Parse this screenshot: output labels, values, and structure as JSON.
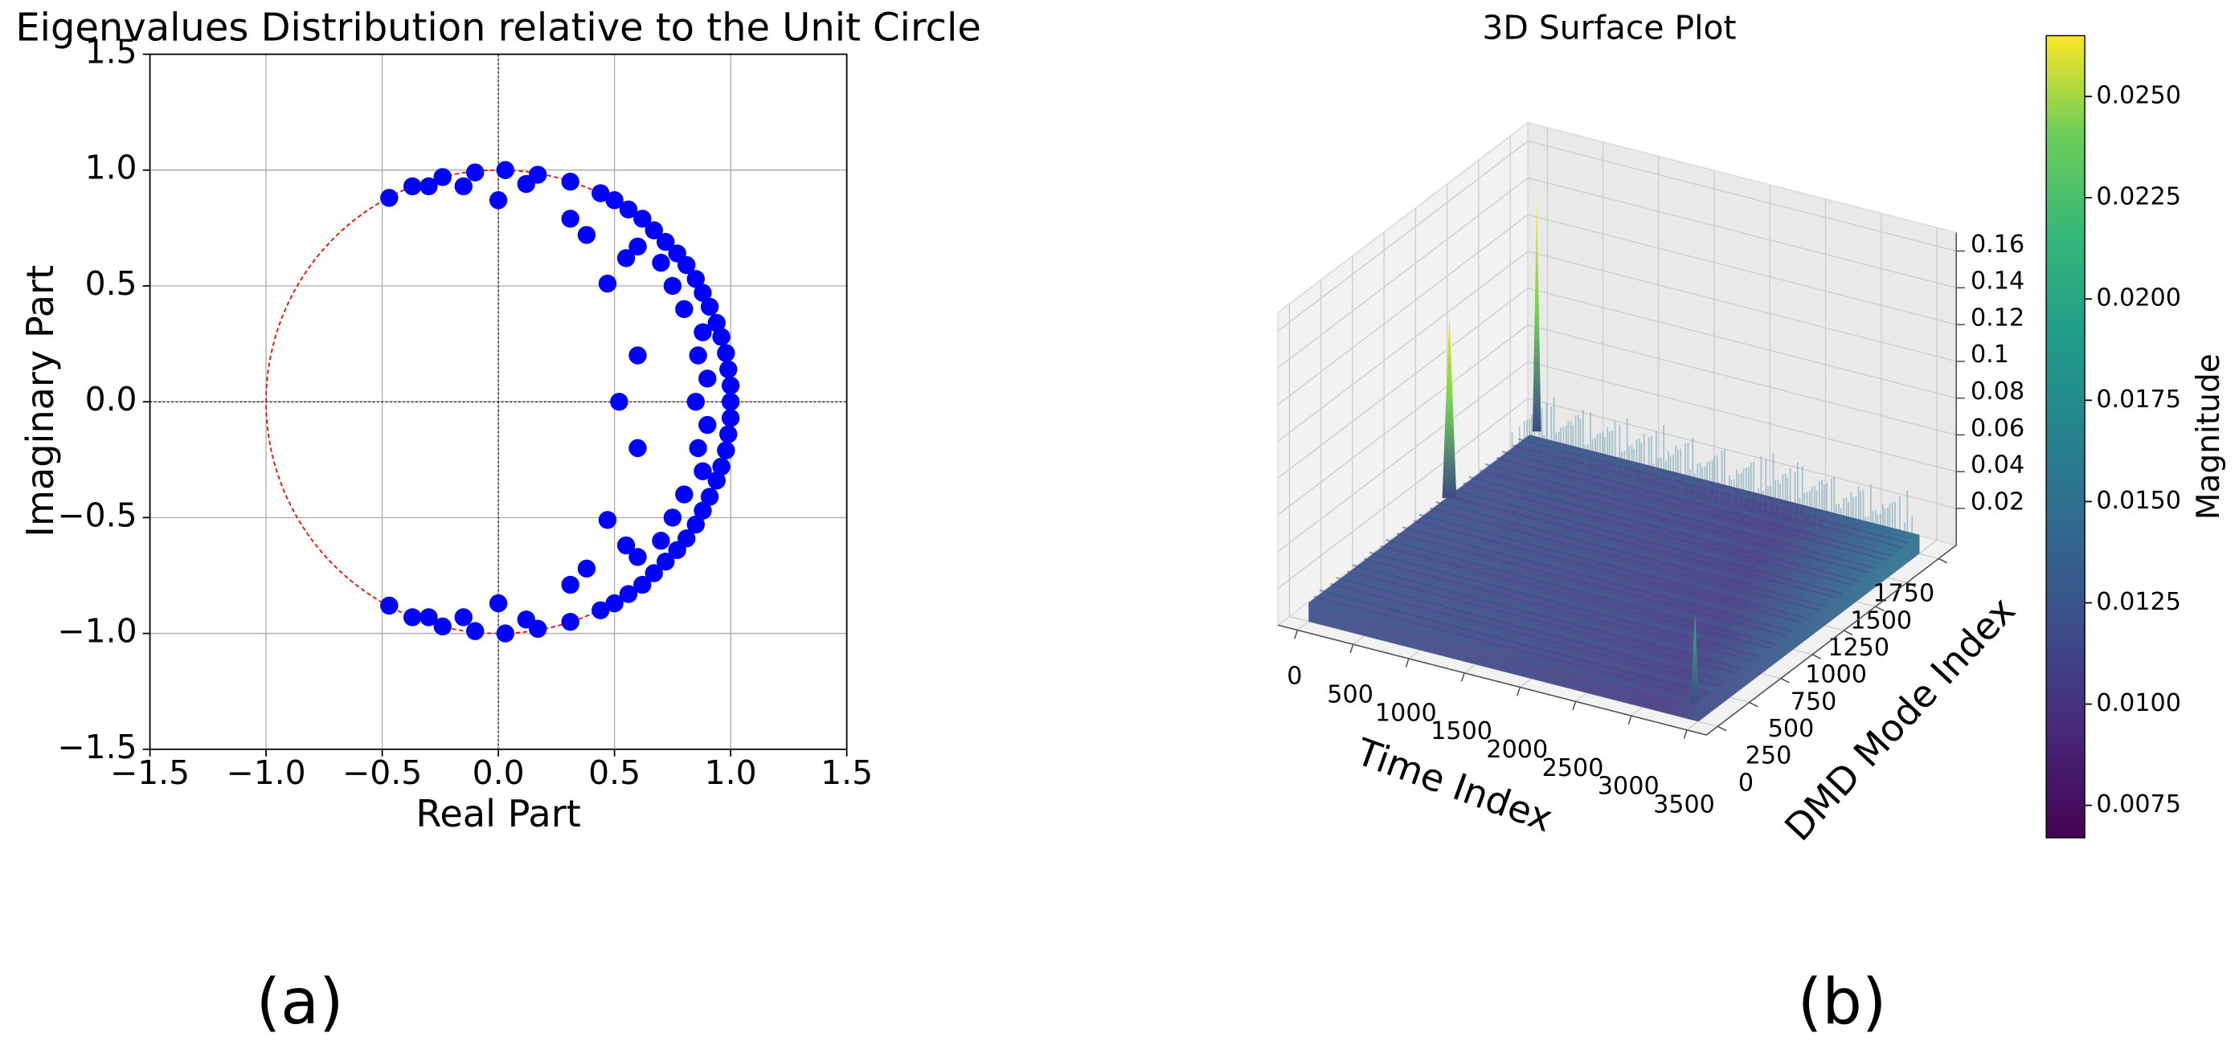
{
  "chart_data": [
    {
      "type": "scatter",
      "title": "Eigenvalues Distribution relative to the Unit Circle",
      "xlabel": "Real Part",
      "ylabel": "Imaginary Part",
      "color": "#0000ff",
      "circle_color": "#ff0000",
      "xlim": [
        -1.5,
        1.5
      ],
      "ylim": [
        -1.5,
        1.5
      ],
      "xticks": [
        {
          "value": -1.5,
          "label": "−1.5"
        },
        {
          "value": -1.0,
          "label": "−1.0"
        },
        {
          "value": -0.5,
          "label": "−0.5"
        },
        {
          "value": 0,
          "label": "0.0"
        },
        {
          "value": 0.5,
          "label": "0.5"
        },
        {
          "value": 1.0,
          "label": "1.0"
        },
        {
          "value": 1.5,
          "label": "1.5"
        }
      ],
      "yticks": [
        {
          "value": -1.5,
          "label": "−1.5"
        },
        {
          "value": -1.0,
          "label": "−1.0"
        },
        {
          "value": -0.5,
          "label": "−0.5"
        },
        {
          "value": 0,
          "label": "0.0"
        },
        {
          "value": 0.5,
          "label": "0.5"
        },
        {
          "value": 1.0,
          "label": "1.0"
        },
        {
          "value": 1.5,
          "label": "1.5"
        }
      ],
      "grid": true,
      "x": [
        -0.47,
        -0.37,
        -0.24,
        -0.1,
        0.03,
        0.17,
        0.31,
        0.44,
        0.56,
        0.67,
        0.77,
        0.85,
        0.91,
        0.96,
        0.99,
        1.0,
        0.99,
        0.96,
        0.91,
        0.85,
        0.77,
        0.67,
        0.56,
        0.44,
        0.31,
        0.17,
        0.03,
        -0.1,
        -0.24,
        -0.37,
        -0.47,
        1.0,
        0.98,
        0.94,
        0.88,
        0.81,
        0.72,
        0.62,
        0.5,
        1.0,
        0.98,
        0.94,
        0.88,
        0.81,
        0.72,
        0.62,
        0.5,
        0.0,
        0.0,
        0.47,
        0.47,
        0.52,
        0.6,
        0.6,
        0.31,
        0.38,
        0.31,
        0.38,
        0.86,
        0.86,
        0.85,
        0.9,
        0.9,
        0.6,
        0.6,
        0.55,
        0.55,
        0.7,
        0.7,
        0.8,
        0.8,
        0.88,
        0.88,
        0.75,
        0.75,
        -0.15,
        -0.15,
        0.12,
        0.12,
        -0.3,
        -0.3
      ],
      "y": [
        -0.88,
        -0.93,
        -0.97,
        -0.99,
        -1.0,
        -0.98,
        -0.95,
        -0.9,
        -0.83,
        -0.74,
        -0.64,
        -0.53,
        -0.41,
        -0.28,
        -0.14,
        0.0,
        0.14,
        0.28,
        0.41,
        0.53,
        0.64,
        0.74,
        0.83,
        0.9,
        0.95,
        0.98,
        1.0,
        0.99,
        0.97,
        0.93,
        0.88,
        0.07,
        0.21,
        0.34,
        0.47,
        0.59,
        0.69,
        0.79,
        0.87,
        -0.07,
        -0.21,
        -0.34,
        -0.47,
        -0.59,
        -0.69,
        -0.79,
        -0.87,
        0.87,
        -0.87,
        0.51,
        -0.51,
        0.0,
        0.2,
        -0.2,
        0.79,
        0.72,
        -0.79,
        -0.72,
        0.2,
        -0.2,
        0.0,
        0.1,
        -0.1,
        0.67,
        -0.67,
        0.62,
        -0.62,
        0.6,
        -0.6,
        0.4,
        -0.4,
        0.3,
        -0.3,
        0.5,
        -0.5,
        0.93,
        -0.93,
        0.94,
        -0.94,
        0.93,
        -0.93
      ]
    },
    {
      "type": "surface3d",
      "title": "3D Surface Plot",
      "xlabel": "Time Index",
      "ylabel": "DMD Mode Index",
      "colorbar_label": "Magnitude",
      "colormap": "viridis",
      "xlim": [
        -175,
        3675
      ],
      "ylim": [
        -90,
        1890
      ],
      "zlim": [
        0,
        0.17
      ],
      "xticks": [
        0,
        500,
        1000,
        1500,
        2000,
        2500,
        3000,
        3500
      ],
      "yticks": [
        0,
        250,
        500,
        750,
        1000,
        1250,
        1500,
        1750
      ],
      "zticks": [
        0.02,
        0.04,
        0.06,
        0.08,
        0.1,
        0.12,
        0.14,
        0.16
      ],
      "clim": [
        0.0067,
        0.0265
      ],
      "cticks": [
        0.0075,
        {
          "value": 0.01,
          "label": "0.0100"
        },
        0.0125,
        {
          "value": 0.015,
          "label": "0.0150"
        },
        0.0175,
        {
          "value": 0.02,
          "label": "0.0200"
        },
        0.0225,
        {
          "value": 0.025,
          "label": "0.0250"
        }
      ]
    }
  ],
  "captions": [
    "(a)",
    "(b)"
  ]
}
